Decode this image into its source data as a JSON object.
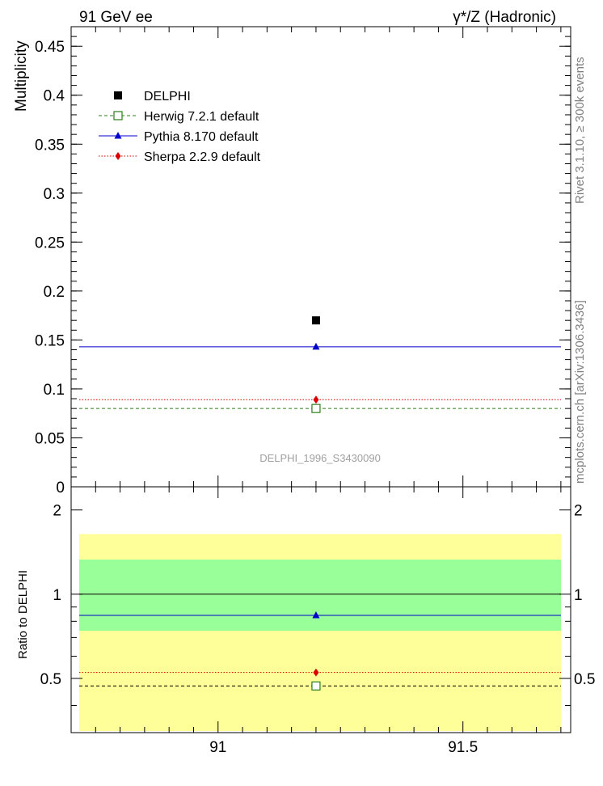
{
  "header": {
    "left": "91 GeV ee",
    "right": "γ*/Z (Hadronic)"
  },
  "side": {
    "rivet": "Rivet 3.1.10, ≥ 300k events",
    "mcplots": "mcplots.cern.ch [arXiv:1306.3436]"
  },
  "watermark": "DELPHI_1996_S3430090",
  "colors": {
    "herwig": "#2e7d1b",
    "pythia": "#0000cc",
    "sherpa": "#dd0000",
    "band_inner": "#99ff99",
    "band_outer": "#ffff99"
  },
  "chart_data": [
    {
      "type": "scatter",
      "ylabel": "Multiplicity",
      "xlim": [
        90.7,
        91.72
      ],
      "ylim": [
        0,
        0.47
      ],
      "yticks": [
        "0",
        "0.05",
        "0.1",
        "0.15",
        "0.2",
        "0.25",
        "0.3",
        "0.35",
        "0.4",
        "0.45"
      ],
      "legend_position": "top-left",
      "x": [
        91.2
      ],
      "series": [
        {
          "name": "DELPHI",
          "values": [
            0.17
          ],
          "marker": "filled-square",
          "color": "#000000"
        },
        {
          "name": "Herwig 7.2.1 default",
          "values": [
            0.08
          ],
          "marker": "open-square",
          "line": "dashed",
          "color": "#2e7d1b"
        },
        {
          "name": "Pythia 8.170 default",
          "values": [
            0.143
          ],
          "marker": "triangle",
          "line": "solid",
          "color": "#0000cc"
        },
        {
          "name": "Sherpa 2.2.9 default",
          "values": [
            0.089
          ],
          "marker": "diamond",
          "line": "dotted",
          "color": "#dd0000"
        }
      ]
    },
    {
      "type": "scatter",
      "ylabel": "Ratio to DELPHI",
      "xlim": [
        90.7,
        91.72
      ],
      "ylim": [
        0.32,
        2.42
      ],
      "yscale": "log",
      "yticks": [
        "0.5",
        "1",
        "2"
      ],
      "xticks": [
        "91",
        "91.5"
      ],
      "reference_line": 1,
      "bands": {
        "inner": [
          0.74,
          1.33
        ],
        "outer": [
          0.32,
          1.64
        ]
      },
      "x": [
        91.2
      ],
      "series": [
        {
          "name": "Herwig 7.2.1 default",
          "values": [
            0.47
          ]
        },
        {
          "name": "Pythia 8.170 default",
          "values": [
            0.84
          ]
        },
        {
          "name": "Sherpa 2.2.9 default",
          "values": [
            0.525
          ]
        }
      ]
    }
  ]
}
